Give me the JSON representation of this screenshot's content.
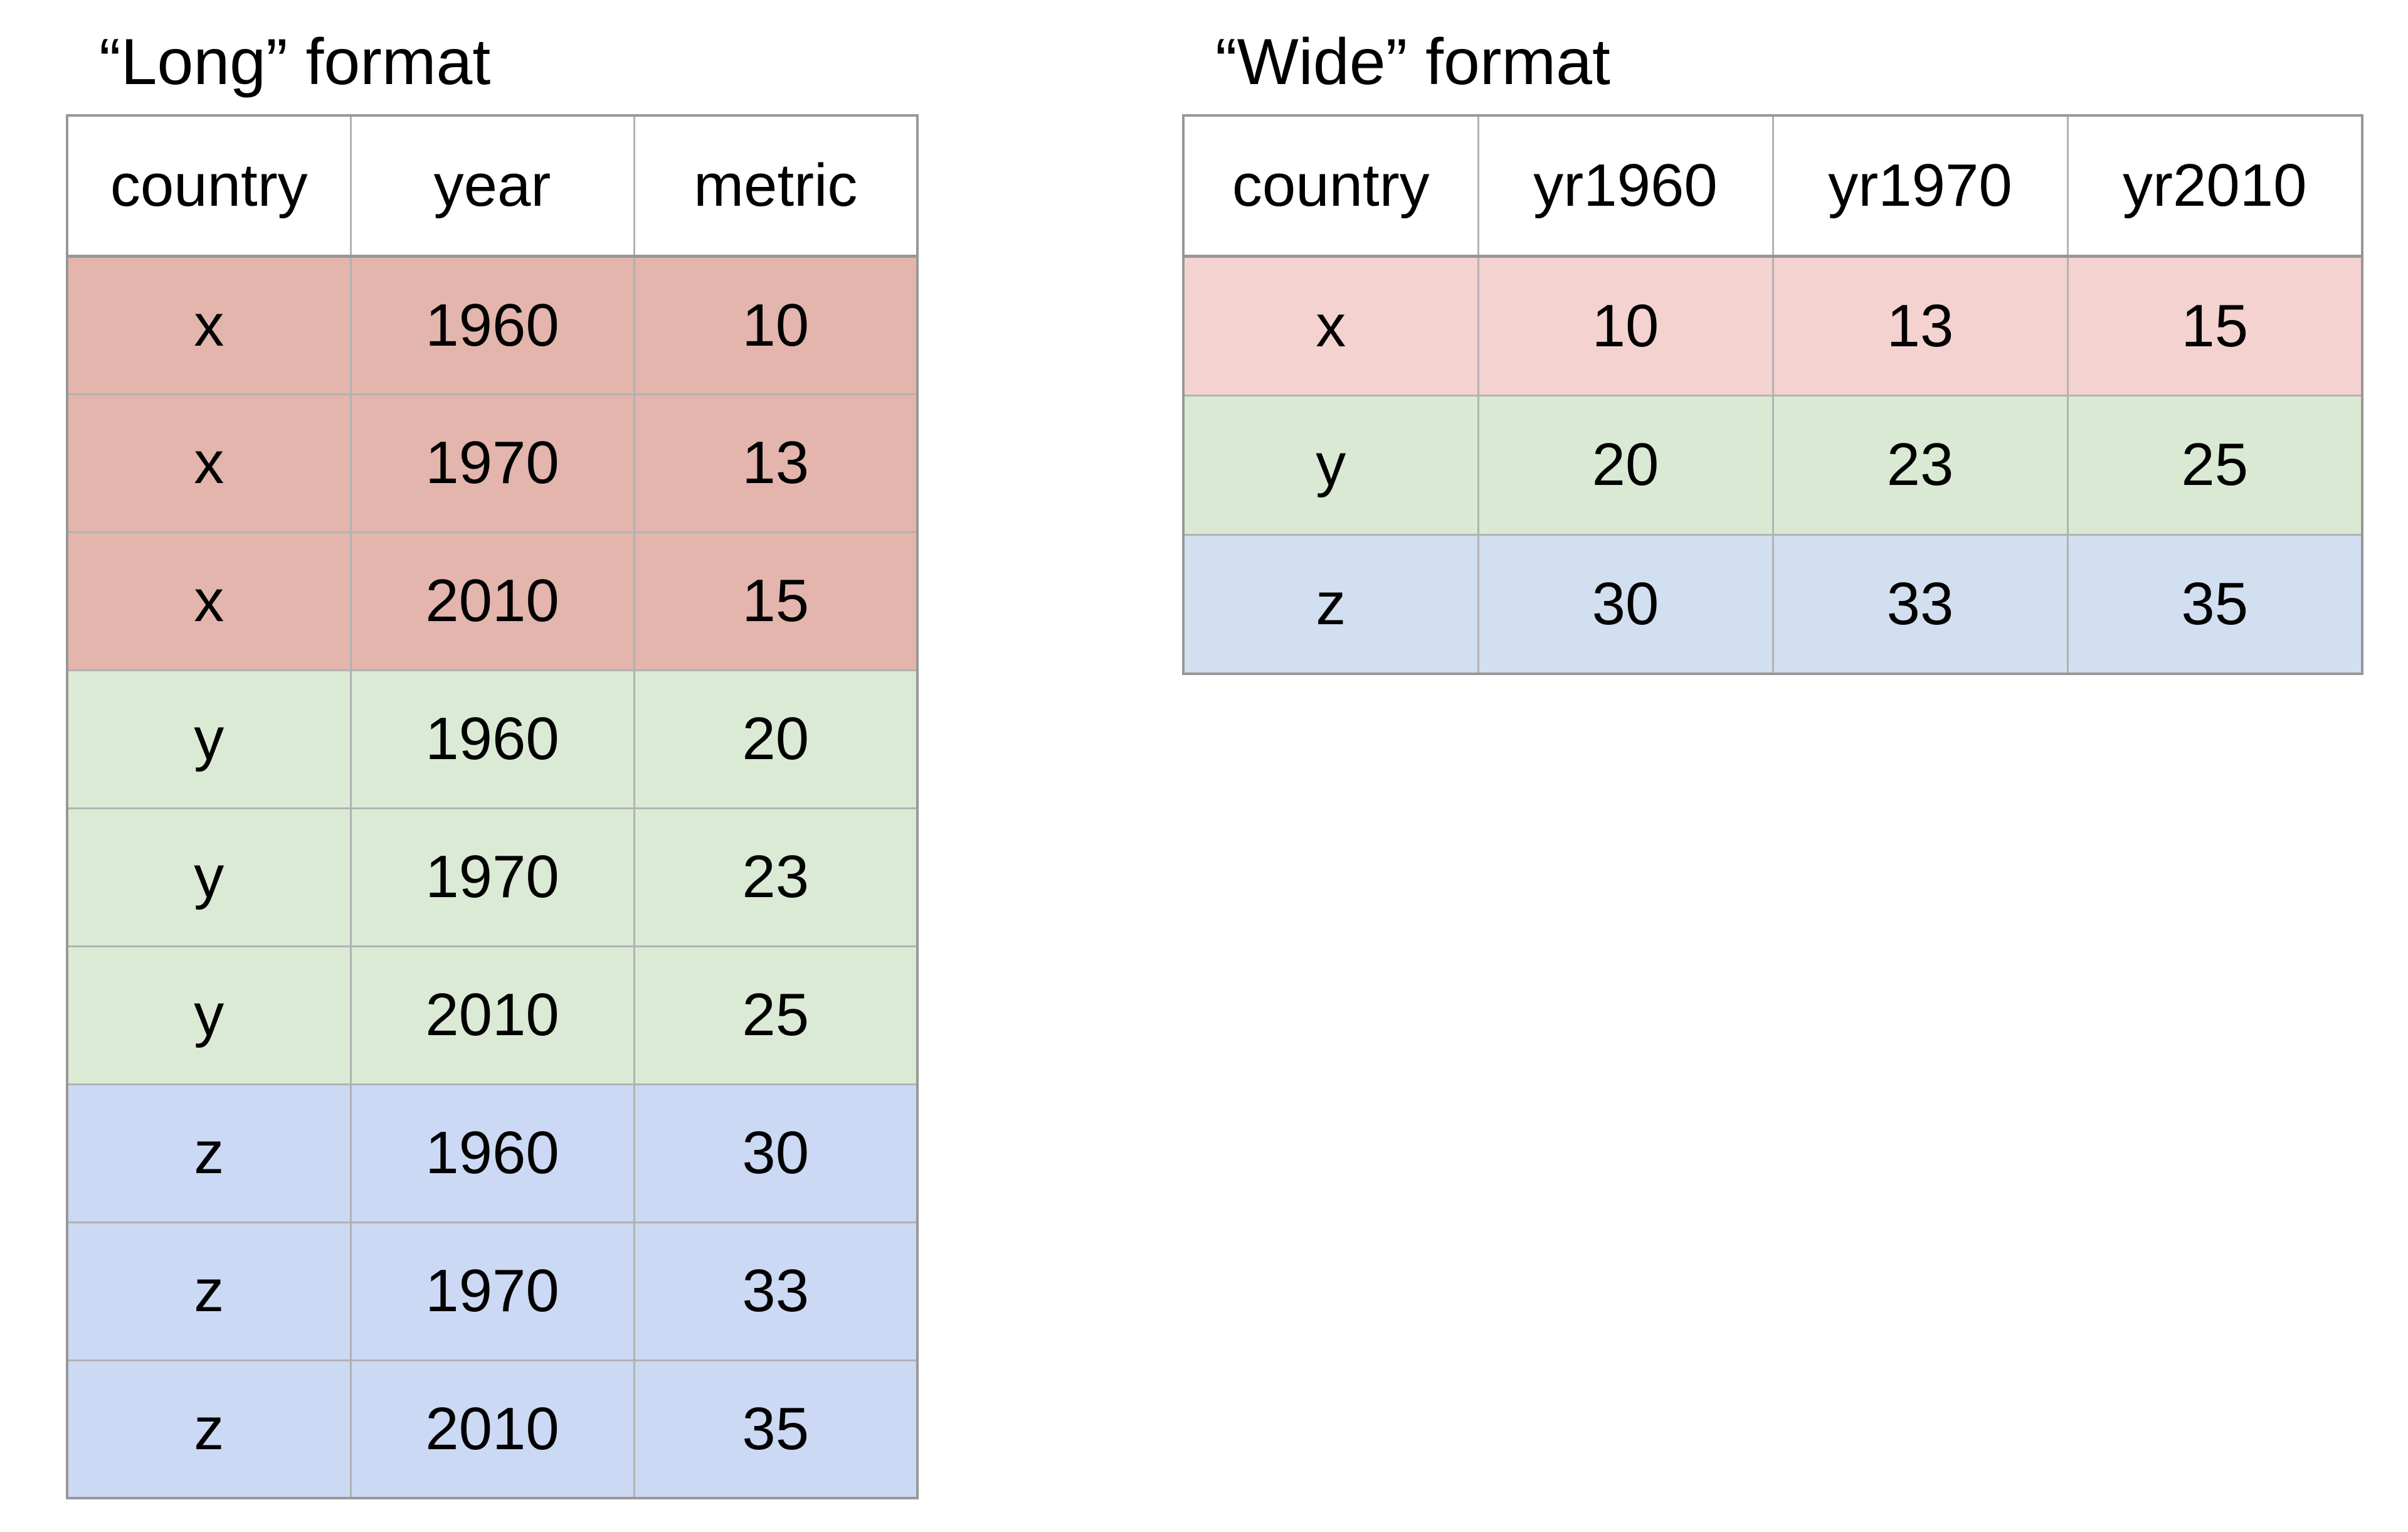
{
  "chart_data": [
    {
      "type": "table",
      "title": "“Long” format",
      "columns": [
        "country",
        "year",
        "metric"
      ],
      "rows": [
        [
          "x",
          1960,
          10
        ],
        [
          "x",
          1970,
          13
        ],
        [
          "x",
          2010,
          15
        ],
        [
          "y",
          1960,
          20
        ],
        [
          "y",
          1970,
          23
        ],
        [
          "y",
          2010,
          25
        ],
        [
          "z",
          1960,
          30
        ],
        [
          "z",
          1970,
          33
        ],
        [
          "z",
          2010,
          35
        ]
      ],
      "row_groups": [
        "x",
        "x",
        "x",
        "y",
        "y",
        "y",
        "z",
        "z",
        "z"
      ],
      "layout": "left table, header row white, data rows color-grouped by country"
    },
    {
      "type": "table",
      "title": "“Wide” format",
      "columns": [
        "country",
        "yr1960",
        "yr1970",
        "yr2010"
      ],
      "rows": [
        [
          "x",
          10,
          13,
          15
        ],
        [
          "y",
          20,
          23,
          25
        ],
        [
          "z",
          30,
          33,
          35
        ]
      ],
      "row_groups": [
        "x",
        "y",
        "z"
      ],
      "layout": "right table, header row white, data rows color-grouped by country"
    }
  ],
  "colors": {
    "long_row_x": "#e3b5ac",
    "long_row_y": "#dbead5",
    "long_row_z": "#ccd9f4",
    "wide_row_x": "#f4d2d0",
    "wide_row_y": "#dae9d3",
    "wide_row_z": "#d2dff0",
    "header_bg": "#ffffff",
    "border_inner": "#b2b2b2",
    "border_outer": "#979797",
    "text": "#000000",
    "page_bg": "#ffffff"
  }
}
